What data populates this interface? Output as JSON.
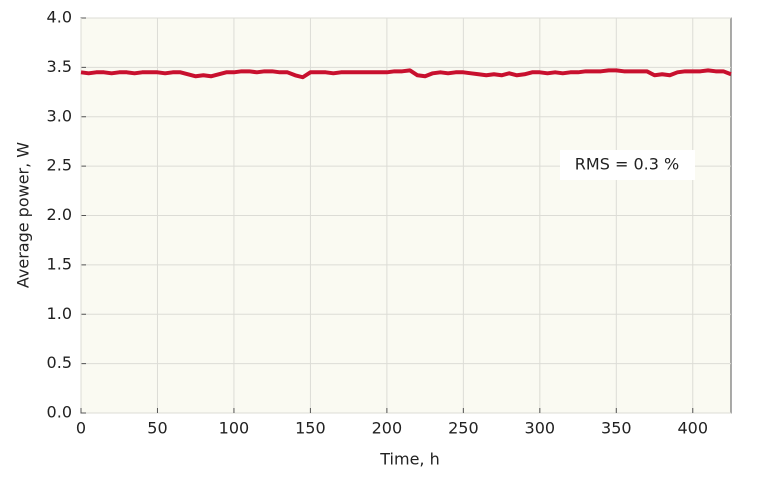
{
  "chart_data": {
    "type": "line",
    "xlabel": "Time, h",
    "ylabel": "Average power, W",
    "annotation": "RMS = 0.3 %",
    "x": [
      0,
      5,
      10,
      15,
      20,
      25,
      30,
      35,
      40,
      45,
      50,
      55,
      60,
      65,
      70,
      75,
      80,
      85,
      90,
      95,
      100,
      105,
      110,
      115,
      120,
      125,
      130,
      135,
      140,
      145,
      150,
      155,
      160,
      165,
      170,
      175,
      180,
      185,
      190,
      195,
      200,
      205,
      210,
      215,
      220,
      225,
      230,
      235,
      240,
      245,
      250,
      255,
      260,
      265,
      270,
      275,
      280,
      285,
      290,
      295,
      300,
      305,
      310,
      315,
      320,
      325,
      330,
      335,
      340,
      345,
      350,
      355,
      360,
      365,
      370,
      375,
      380,
      385,
      390,
      395,
      400,
      405,
      410,
      415,
      420,
      425
    ],
    "series": [
      {
        "color": "#c8102e",
        "values": [
          3.45,
          3.44,
          3.45,
          3.45,
          3.44,
          3.45,
          3.45,
          3.44,
          3.45,
          3.45,
          3.45,
          3.44,
          3.45,
          3.45,
          3.43,
          3.41,
          3.42,
          3.41,
          3.43,
          3.45,
          3.45,
          3.46,
          3.46,
          3.45,
          3.46,
          3.46,
          3.45,
          3.45,
          3.42,
          3.4,
          3.45,
          3.45,
          3.45,
          3.44,
          3.45,
          3.45,
          3.45,
          3.45,
          3.45,
          3.45,
          3.45,
          3.46,
          3.46,
          3.47,
          3.42,
          3.41,
          3.44,
          3.45,
          3.44,
          3.45,
          3.45,
          3.44,
          3.43,
          3.42,
          3.43,
          3.42,
          3.44,
          3.42,
          3.43,
          3.45,
          3.45,
          3.44,
          3.45,
          3.44,
          3.45,
          3.45,
          3.46,
          3.46,
          3.46,
          3.47,
          3.47,
          3.46,
          3.46,
          3.46,
          3.46,
          3.42,
          3.43,
          3.42,
          3.45,
          3.46,
          3.46,
          3.46,
          3.47,
          3.46,
          3.46,
          3.43
        ]
      }
    ],
    "xlim": [
      0,
      425
    ],
    "xticks": [
      0,
      50,
      100,
      150,
      200,
      250,
      300,
      350,
      400
    ],
    "ylim": [
      0,
      4
    ],
    "yticks": [
      {
        "value": 0,
        "label": "0.0"
      },
      0.5,
      {
        "value": 1,
        "label": "1.0"
      },
      1.5,
      {
        "value": 2,
        "label": "2.0"
      },
      2.5,
      {
        "value": 3,
        "label": "3.0"
      },
      3.5,
      {
        "value": 4,
        "label": "4.0"
      }
    ],
    "grid": true
  }
}
